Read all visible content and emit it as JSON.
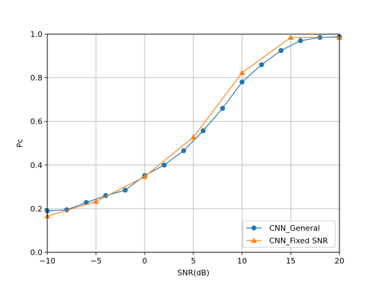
{
  "chart_data": {
    "type": "line",
    "title": "",
    "xlabel": "SNR(dB)",
    "ylabel": "Pc",
    "xlim": [
      -10,
      20
    ],
    "ylim": [
      0.0,
      1.0
    ],
    "xticks": [
      -10,
      -5,
      0,
      5,
      10,
      15,
      20
    ],
    "xtick_labels": [
      "−10",
      "−5",
      "0",
      "5",
      "10",
      "15",
      "20"
    ],
    "yticks": [
      0.0,
      0.2,
      0.4,
      0.6,
      0.8,
      1.0
    ],
    "ytick_labels": [
      "0.0",
      "0.2",
      "0.4",
      "0.6",
      "0.8",
      "1.0"
    ],
    "grid": true,
    "legend_position": "lower-right",
    "series": [
      {
        "name": "CNN_General",
        "color": "#1f77b4",
        "marker": "circle",
        "x": [
          -10,
          -8,
          -6,
          -4,
          -2,
          0,
          2,
          4,
          6,
          8,
          10,
          12,
          14,
          16,
          18,
          20
        ],
        "y": [
          0.19,
          0.195,
          0.228,
          0.26,
          0.285,
          0.352,
          0.4,
          0.466,
          0.557,
          0.66,
          0.781,
          0.86,
          0.925,
          0.97,
          0.985,
          0.988
        ]
      },
      {
        "name": "CNN_Fixed SNR",
        "color": "#ff7f0e",
        "marker": "triangle",
        "x": [
          -10,
          -5,
          0,
          5,
          10,
          15,
          20
        ],
        "y": [
          0.166,
          0.233,
          0.347,
          0.528,
          0.823,
          0.985,
          0.985
        ]
      }
    ]
  }
}
